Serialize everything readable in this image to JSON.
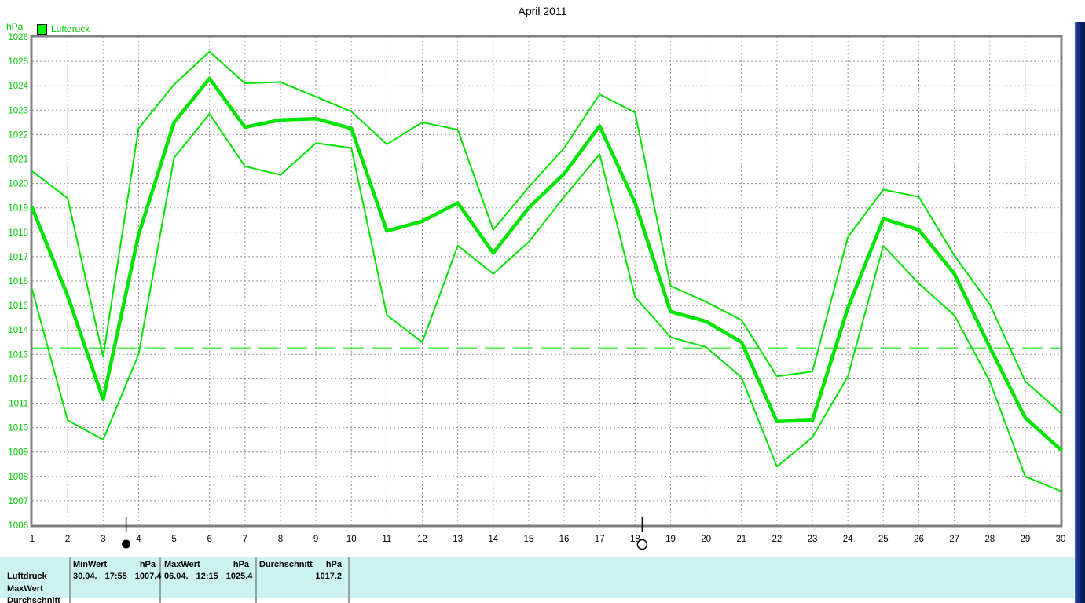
{
  "title": "April 2011",
  "legend": {
    "label": "Luftdruck",
    "swatch_color": "#00ff00"
  },
  "y_axis": {
    "unit_label": "hPa"
  },
  "chart_data": {
    "type": "line",
    "title": "April 2011",
    "ylabel": "hPa",
    "ylim": [
      1006,
      1026
    ],
    "grid": true,
    "legend_position": "top-left",
    "line_color": "#00e400",
    "reference_line": {
      "value": 1013.25,
      "style": "dashed-green"
    },
    "x": [
      1,
      2,
      3,
      4,
      5,
      6,
      7,
      8,
      9,
      10,
      11,
      12,
      13,
      14,
      15,
      16,
      17,
      18,
      19,
      20,
      21,
      22,
      23,
      24,
      25,
      26,
      27,
      28,
      29,
      30
    ],
    "series": [
      {
        "name": "daily_max",
        "thickness": "thin",
        "values": [
          1020.5,
          1019.4,
          1012.9,
          1022.25,
          1024.05,
          1025.4,
          1024.1,
          1024.15,
          1023.55,
          1022.95,
          1021.6,
          1022.5,
          1022.2,
          1018.1,
          1019.85,
          1021.45,
          1023.65,
          1022.9,
          1015.8,
          1015.15,
          1014.4,
          1012.1,
          1012.3,
          1017.8,
          1019.75,
          1019.45,
          1017.05,
          1015.05,
          1011.9,
          1010.6
        ]
      },
      {
        "name": "daily_mean",
        "thickness": "thick",
        "values": [
          1019.0,
          1015.4,
          1011.15,
          1017.9,
          1022.5,
          1024.3,
          1022.3,
          1022.6,
          1022.65,
          1022.25,
          1018.05,
          1018.45,
          1019.2,
          1017.15,
          1019.0,
          1020.4,
          1022.35,
          1019.2,
          1014.75,
          1014.35,
          1013.5,
          1010.25,
          1010.3,
          1014.9,
          1018.55,
          1018.1,
          1016.3,
          1013.3,
          1010.4,
          1009.1
        ]
      },
      {
        "name": "daily_min",
        "thickness": "thin",
        "values": [
          1015.65,
          1010.3,
          1009.5,
          1013.0,
          1021.05,
          1022.85,
          1020.7,
          1020.35,
          1021.65,
          1021.45,
          1014.6,
          1013.5,
          1017.45,
          1016.3,
          1017.6,
          1019.45,
          1021.2,
          1015.35,
          1013.7,
          1013.3,
          1012.05,
          1008.4,
          1009.6,
          1012.1,
          1017.45,
          1015.9,
          1014.6,
          1011.9,
          1008.0,
          1007.4
        ]
      }
    ],
    "moon_markers": [
      {
        "day": 3.65,
        "phase": "new-moon"
      },
      {
        "day": 18.2,
        "phase": "full-moon"
      }
    ]
  },
  "summary_table": {
    "row_labels": [
      "Luftdruck",
      "MaxWert",
      "Durchschnitt"
    ],
    "min_col": {
      "header": "MinWert",
      "unit": "hPa",
      "date": "30.04.",
      "time": "17:55",
      "value": "1007.4"
    },
    "max_col": {
      "header": "MaxWert",
      "unit": "hPa",
      "date": "06.04.",
      "time": "12:15",
      "value": "1025.4"
    },
    "avg_col": {
      "header": "Durchschnitt",
      "unit": "hPa",
      "value": "1017.2"
    }
  }
}
